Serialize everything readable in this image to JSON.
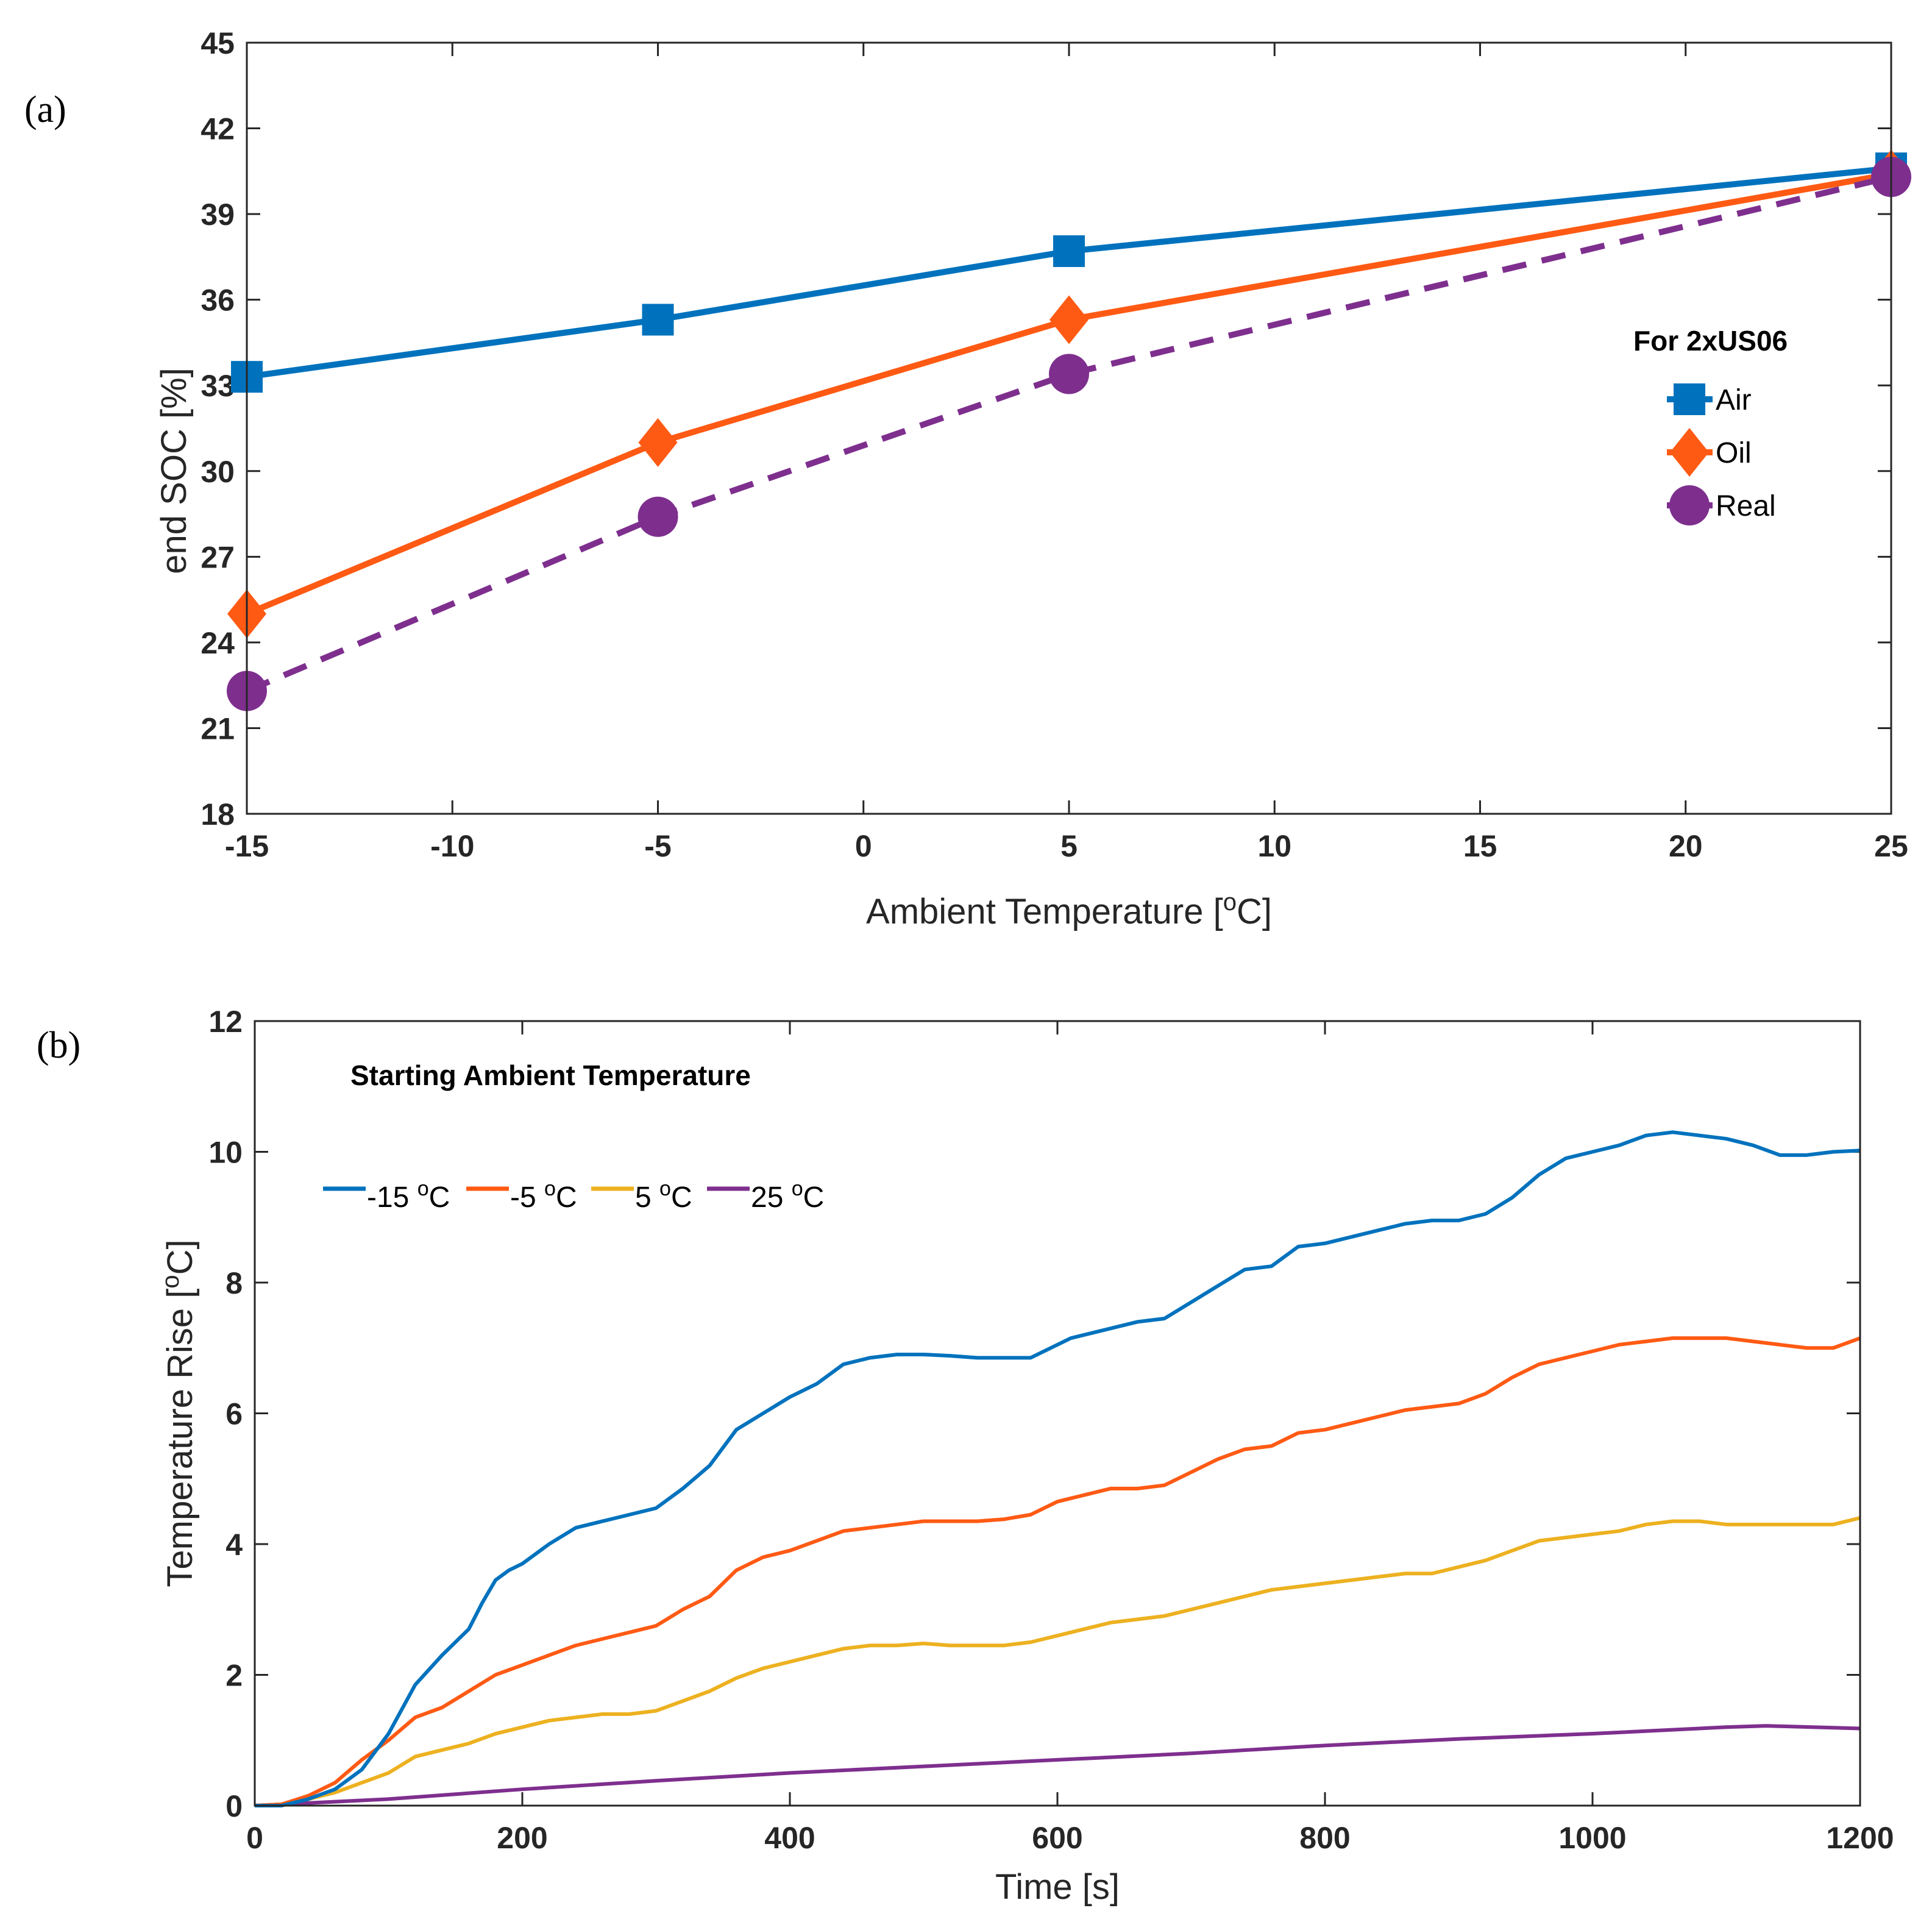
{
  "chart_data": [
    {
      "panel_label": "(a)",
      "type": "line",
      "title": "",
      "xlabel": "Ambient Temperature [",
      "xlabel_sup": "o",
      "xlabel_end": "C]",
      "ylabel": "end SOC [%]",
      "xlim": [
        -15,
        25
      ],
      "ylim": [
        18,
        45
      ],
      "xticks": [
        -15,
        -10,
        -5,
        0,
        5,
        10,
        15,
        20,
        25
      ],
      "yticks": [
        18,
        21,
        24,
        27,
        30,
        33,
        36,
        39,
        42,
        45
      ],
      "x": [
        -15,
        -5,
        5,
        25
      ],
      "series": [
        {
          "name": "Air",
          "color": "#0072BD",
          "marker": "square",
          "dash": false,
          "values": [
            33.3,
            35.3,
            37.7,
            40.6
          ]
        },
        {
          "name": "Oil",
          "color": "#FF5A14",
          "marker": "diamond",
          "dash": false,
          "values": [
            25.0,
            31.0,
            35.3,
            40.4
          ]
        },
        {
          "name": "Real",
          "color": "#7E2F8E",
          "marker": "circle",
          "dash": true,
          "values": [
            22.3,
            28.4,
            33.4,
            40.3
          ]
        }
      ],
      "legend_title": "For 2xUS06",
      "legend_position": "right"
    },
    {
      "panel_label": "(b)",
      "type": "line",
      "title": "",
      "xlabel": "Time [s]",
      "ylabel": "Temperature Rise [",
      "ylabel_sup": "o",
      "ylabel_end": "C]",
      "xlim": [
        0,
        1200
      ],
      "ylim": [
        0,
        12
      ],
      "xticks": [
        0,
        200,
        400,
        600,
        800,
        1000,
        1200
      ],
      "yticks": [
        0,
        2,
        4,
        6,
        8,
        10,
        12
      ],
      "legend_title": "Starting Ambient Temperature",
      "legend_position": "top-left",
      "series": [
        {
          "name": "-15",
          "unit": "C",
          "color": "#0072BD",
          "x": [
            0,
            20,
            40,
            60,
            80,
            100,
            120,
            140,
            160,
            170,
            180,
            190,
            200,
            220,
            240,
            260,
            280,
            300,
            320,
            340,
            360,
            380,
            400,
            420,
            440,
            460,
            480,
            500,
            520,
            540,
            560,
            580,
            600,
            610,
            620,
            640,
            660,
            680,
            700,
            720,
            740,
            760,
            780,
            800,
            820,
            840,
            860,
            880,
            900,
            920,
            940,
            960,
            980,
            1000,
            1020,
            1040,
            1060,
            1080,
            1100,
            1120,
            1140,
            1160,
            1180,
            1200
          ],
          "values": [
            0,
            0,
            0.1,
            0.25,
            0.55,
            1.1,
            1.85,
            2.3,
            2.7,
            3.1,
            3.45,
            3.6,
            3.7,
            4.0,
            4.25,
            4.35,
            4.45,
            4.55,
            4.85,
            5.2,
            5.75,
            6.0,
            6.25,
            6.45,
            6.75,
            6.85,
            6.9,
            6.9,
            6.88,
            6.85,
            6.85,
            6.85,
            7.05,
            7.15,
            7.2,
            7.3,
            7.4,
            7.45,
            7.7,
            7.95,
            8.2,
            8.25,
            8.55,
            8.6,
            8.7,
            8.8,
            8.9,
            8.95,
            8.95,
            9.05,
            9.3,
            9.65,
            9.9,
            10.0,
            10.1,
            10.25,
            10.3,
            10.25,
            10.2,
            10.1,
            9.95,
            9.95,
            10.0,
            10.02
          ]
        },
        {
          "name": "-5",
          "unit": "C",
          "color": "#FF5A14",
          "x": [
            0,
            20,
            40,
            60,
            80,
            100,
            120,
            140,
            160,
            180,
            200,
            220,
            240,
            260,
            280,
            300,
            320,
            340,
            360,
            380,
            400,
            420,
            440,
            460,
            480,
            500,
            520,
            540,
            560,
            580,
            600,
            620,
            640,
            660,
            680,
            700,
            720,
            740,
            760,
            780,
            800,
            820,
            840,
            860,
            880,
            900,
            920,
            940,
            960,
            980,
            1000,
            1020,
            1040,
            1060,
            1080,
            1100,
            1120,
            1140,
            1160,
            1180,
            1200
          ],
          "values": [
            0,
            0.02,
            0.15,
            0.35,
            0.7,
            1.0,
            1.35,
            1.5,
            1.75,
            2.0,
            2.15,
            2.3,
            2.45,
            2.55,
            2.65,
            2.75,
            3.0,
            3.2,
            3.6,
            3.8,
            3.9,
            4.05,
            4.2,
            4.25,
            4.3,
            4.35,
            4.35,
            4.35,
            4.38,
            4.45,
            4.65,
            4.75,
            4.85,
            4.85,
            4.9,
            5.1,
            5.3,
            5.45,
            5.5,
            5.7,
            5.75,
            5.85,
            5.95,
            6.05,
            6.1,
            6.15,
            6.3,
            6.55,
            6.75,
            6.85,
            6.95,
            7.05,
            7.1,
            7.15,
            7.15,
            7.15,
            7.1,
            7.05,
            7.0,
            7.0,
            7.15
          ]
        },
        {
          "name": "5",
          "unit": "C",
          "color": "#EDB120",
          "x": [
            0,
            20,
            40,
            60,
            80,
            100,
            120,
            140,
            160,
            180,
            200,
            220,
            240,
            260,
            280,
            300,
            320,
            340,
            360,
            380,
            400,
            420,
            440,
            460,
            480,
            500,
            520,
            540,
            560,
            580,
            600,
            620,
            640,
            660,
            680,
            700,
            720,
            740,
            760,
            780,
            800,
            820,
            840,
            860,
            880,
            900,
            920,
            940,
            960,
            980,
            1000,
            1020,
            1040,
            1060,
            1080,
            1100,
            1120,
            1140,
            1160,
            1180,
            1200
          ],
          "values": [
            0,
            0.02,
            0.1,
            0.2,
            0.35,
            0.5,
            0.75,
            0.85,
            0.95,
            1.1,
            1.2,
            1.3,
            1.35,
            1.4,
            1.4,
            1.45,
            1.6,
            1.75,
            1.95,
            2.1,
            2.2,
            2.3,
            2.4,
            2.45,
            2.45,
            2.48,
            2.45,
            2.45,
            2.45,
            2.5,
            2.6,
            2.7,
            2.8,
            2.85,
            2.9,
            3.0,
            3.1,
            3.2,
            3.3,
            3.35,
            3.4,
            3.45,
            3.5,
            3.55,
            3.55,
            3.65,
            3.75,
            3.9,
            4.05,
            4.1,
            4.15,
            4.2,
            4.3,
            4.35,
            4.35,
            4.3,
            4.3,
            4.3,
            4.3,
            4.3,
            4.4
          ]
        },
        {
          "name": "25",
          "unit": "C",
          "color": "#7E2F8E",
          "x": [
            0,
            100,
            200,
            300,
            400,
            500,
            600,
            700,
            800,
            900,
            1000,
            1100,
            1130,
            1200
          ],
          "values": [
            0,
            0.1,
            0.25,
            0.38,
            0.5,
            0.6,
            0.7,
            0.8,
            0.92,
            1.02,
            1.1,
            1.2,
            1.22,
            1.18
          ]
        }
      ]
    }
  ]
}
